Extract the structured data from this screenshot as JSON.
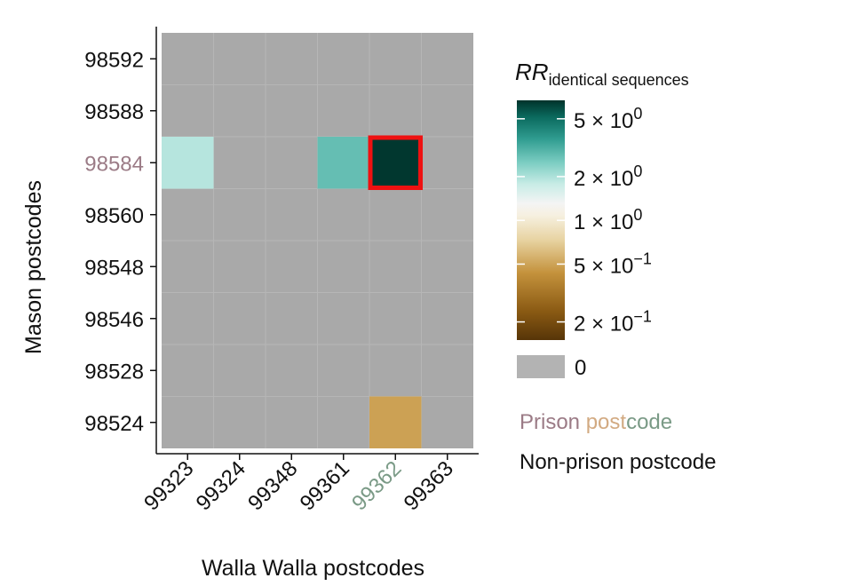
{
  "chart_data": {
    "type": "heatmap",
    "xlabel": "Walla Walla postcodes",
    "ylabel": "Mason postcodes",
    "x_categories": [
      "99323",
      "99324",
      "99348",
      "99361",
      "99362",
      "99363"
    ],
    "y_categories": [
      "98592",
      "98588",
      "98584",
      "98560",
      "98548",
      "98546",
      "98528",
      "98524"
    ],
    "prison_x": "99362",
    "prison_y": "98584",
    "cells": [
      {
        "x": "99323",
        "y": "98584",
        "rr": 1.6
      },
      {
        "x": "99361",
        "y": "98584",
        "rr": 2.4
      },
      {
        "x": "99362",
        "y": "98584",
        "rr": 6.5,
        "highlight": true
      },
      {
        "x": "99362",
        "y": "98524",
        "rr": 0.35
      }
    ],
    "zero_value_label": "0",
    "legend": {
      "title_main": "RR",
      "title_sub": "identical sequences",
      "ticks": [
        {
          "value": 5,
          "label_base": "5 × 10",
          "label_exp": "0"
        },
        {
          "value": 2,
          "label_base": "2 × 10",
          "label_exp": "0"
        },
        {
          "value": 1,
          "label_base": "1 × 10",
          "label_exp": "0"
        },
        {
          "value": 0.5,
          "label_base": "5 × 10",
          "label_exp": "−1"
        },
        {
          "value": 0.2,
          "label_base": "2 × 10",
          "label_exp": "−1"
        }
      ],
      "range": [
        0.15,
        6.7
      ],
      "scale": "log",
      "zero_label": "0",
      "prison_label_parts": [
        "Prison ",
        "post",
        "code"
      ],
      "non_prison_label": "Non-prison postcode"
    },
    "colors": {
      "missing": "#a9a9a9",
      "prison_mason": "#9b7b86",
      "prison_walla": "#7a9a86",
      "post_color": "#d2aa82",
      "code_color": "#7a9a86",
      "highlight": "#ee1111",
      "colormap": [
        "#573508",
        "#8a5a13",
        "#c4923c",
        "#e8d4a3",
        "#f6f0e0",
        "#f4f4f4",
        "#c8ece6",
        "#7ccdc2",
        "#2f9c90",
        "#0b6a5e",
        "#00332b"
      ]
    }
  }
}
